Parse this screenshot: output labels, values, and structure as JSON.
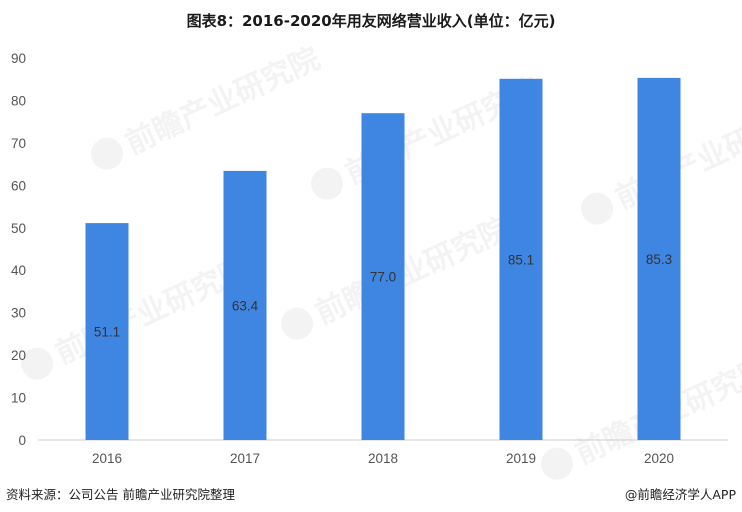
{
  "title": "图表8：2016-2020年用友网络营业收入(单位：亿元)",
  "source_note": "资料来源：公司公告 前瞻产业研究院整理",
  "credit": "@前瞻经济学人APP",
  "watermark": "前瞻产业研究院",
  "colors": {
    "bar": "#3f86e3",
    "axis": "#cccccc",
    "tick_text": "#555555",
    "value_text": "#333333"
  },
  "chart_data": {
    "type": "bar",
    "title": "图表8：2016-2020年用友网络营业收入(单位：亿元)",
    "categories": [
      "2016",
      "2017",
      "2018",
      "2019",
      "2020"
    ],
    "values": [
      51.1,
      63.4,
      77.0,
      85.1,
      85.3
    ],
    "value_labels": [
      "51.1",
      "63.4",
      "77.0",
      "85.1",
      "85.3"
    ],
    "ylim": [
      0,
      90
    ],
    "yticks": [
      0,
      10,
      20,
      30,
      40,
      50,
      60,
      70,
      80,
      90
    ],
    "xlabel": "",
    "ylabel": "",
    "grid": false,
    "legend": "none"
  }
}
